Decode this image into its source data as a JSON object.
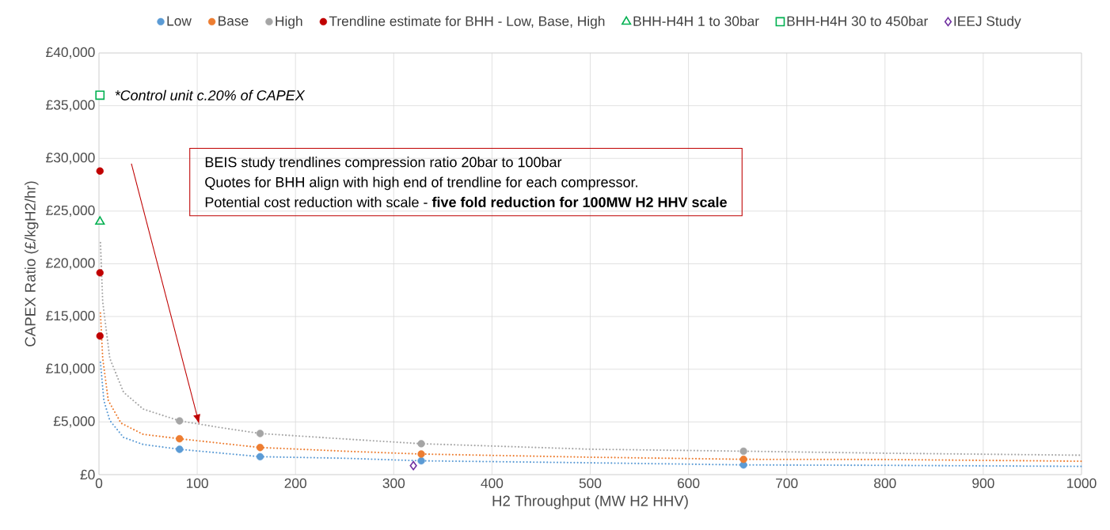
{
  "chart_data": {
    "type": "scatter",
    "xlabel": "H2 Throughput (MW H2 HHV)",
    "ylabel": "CAPEX Ratio (£/kgH2/hr)",
    "xlim": [
      0,
      1000
    ],
    "ylim": [
      0,
      40000
    ],
    "xticks": [
      0,
      100,
      200,
      300,
      400,
      500,
      600,
      700,
      800,
      900,
      1000
    ],
    "yticks": [
      {
        "value": 0,
        "label": "£0"
      },
      {
        "value": 5000,
        "label": "£5,000"
      },
      {
        "value": 10000,
        "label": "£10,000"
      },
      {
        "value": 15000,
        "label": "£15,000"
      },
      {
        "value": 20000,
        "label": "£20,000"
      },
      {
        "value": 25000,
        "label": "£25,000"
      },
      {
        "value": 30000,
        "label": "£30,000"
      },
      {
        "value": 35000,
        "label": "£35,000"
      },
      {
        "value": 40000,
        "label": "£40,000"
      }
    ],
    "grid": true,
    "legend": "top",
    "annotations": [
      "BEIS study trendlines compression ratio 20bar to 100bar",
      "Quotes for BHH align with high end of trendline for each compressor.",
      "Potential cost reduction with scale - **five fold reduction for 100MW H2 HHV scale**",
      "*Control unit c.20% of CAPEX"
    ],
    "series": [
      {
        "type": "line",
        "color": "#5b9bd5",
        "line_style": "dotted",
        "marker": "none",
        "x": [
          1.5,
          5,
          11,
          25,
          45,
          82,
          164,
          250,
          328,
          500,
          656,
          800,
          1000
        ],
        "values": [
          10650,
          7020,
          5140,
          3530,
          2860,
          2400,
          1700,
          1550,
          1310,
          1120,
          920,
          880,
          780
        ]
      },
      {
        "type": "line",
        "color": "#ed7d31",
        "line_style": "dotted",
        "marker": "none",
        "x": [
          1.5,
          3.8,
          9.5,
          22.5,
          45,
          82,
          164,
          250,
          328,
          500,
          656,
          800,
          1000
        ],
        "values": [
          15330,
          11030,
          7020,
          4880,
          3820,
          3400,
          2570,
          2220,
          1950,
          1650,
          1450,
          1430,
          1270
        ]
      },
      {
        "type": "line",
        "color": "#a5a5a5",
        "line_style": "dotted",
        "marker": "none",
        "x": [
          1.5,
          3.8,
          11,
          25,
          45,
          82,
          123,
          164,
          250,
          328,
          500,
          656,
          800,
          1000
        ],
        "values": [
          22000,
          16400,
          11030,
          7820,
          6220,
          5100,
          4470,
          3900,
          3380,
          2930,
          2410,
          2220,
          2030,
          1840
        ]
      },
      {
        "name": "Low",
        "color": "#5b9bd5",
        "marker": "circle",
        "x": [
          82,
          164,
          328,
          656
        ],
        "values": [
          2400,
          1700,
          1310,
          920
        ]
      },
      {
        "name": "Base",
        "color": "#ed7d31",
        "marker": "circle",
        "x": [
          82,
          164,
          328,
          656
        ],
        "values": [
          3400,
          2570,
          1950,
          1450
        ]
      },
      {
        "name": "High",
        "color": "#a5a5a5",
        "marker": "circle",
        "x": [
          82,
          164,
          328,
          656
        ],
        "values": [
          5100,
          3900,
          2930,
          2220
        ]
      },
      {
        "name": "Trendline estimate for BHH - Low, Base, High",
        "color": "#c00000",
        "marker": "circle",
        "x": [
          1,
          1,
          1
        ],
        "values": [
          28800,
          19150,
          13150
        ]
      },
      {
        "name": "BHH-H4H 1 to 30bar",
        "color": "#00b050",
        "marker": "triangle",
        "x": [
          1
        ],
        "values": [
          24000
        ]
      },
      {
        "name": "BHH-H4H 30 to 450bar",
        "color": "#00b050",
        "marker": "square",
        "x": [
          1
        ],
        "values": [
          36000
        ]
      },
      {
        "name": "IEEJ Study",
        "color": "#7030a0",
        "marker": "diamond",
        "x": [
          320
        ],
        "values": [
          850
        ]
      }
    ]
  }
}
